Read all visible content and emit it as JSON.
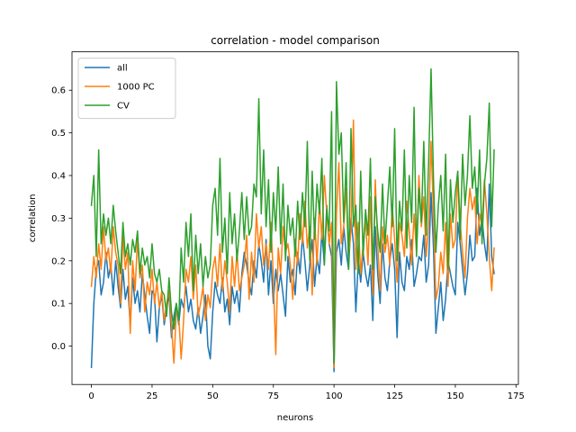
{
  "chart_data": {
    "type": "line",
    "title": "correlation - model comparison",
    "xlabel": "neurons",
    "ylabel": "correlation",
    "xlim": [
      -8,
      176
    ],
    "ylim": [
      -0.09,
      0.69
    ],
    "xticks": [
      0,
      25,
      50,
      75,
      100,
      125,
      150,
      175
    ],
    "yticks": [
      0.0,
      0.1,
      0.2,
      0.3,
      0.4,
      0.5,
      0.6
    ],
    "ytick_labels": [
      "0.0",
      "0.1",
      "0.2",
      "0.3",
      "0.4",
      "0.5",
      "0.6"
    ],
    "grid": false,
    "legend_position": "upper left",
    "series": [
      {
        "name": "all",
        "color": "#1f77b4",
        "values": [
          -0.05,
          0.1,
          0.18,
          0.2,
          0.12,
          0.15,
          0.22,
          0.16,
          0.19,
          0.12,
          0.2,
          0.14,
          0.09,
          0.18,
          0.11,
          0.14,
          0.05,
          0.16,
          0.1,
          0.13,
          0.08,
          0.17,
          0.12,
          0.07,
          0.03,
          0.13,
          0.12,
          0.01,
          0.09,
          0.12,
          0.05,
          0.09,
          0.12,
          0.02,
          0.07,
          0.1,
          0.05,
          0.11,
          0.09,
          0.14,
          0.08,
          0.11,
          0.06,
          0.04,
          0.09,
          0.03,
          0.07,
          0.12,
          0.0,
          -0.03,
          0.08,
          0.15,
          0.12,
          0.1,
          0.16,
          0.08,
          0.11,
          0.05,
          0.14,
          0.1,
          0.13,
          0.08,
          0.17,
          0.22,
          0.19,
          0.15,
          0.12,
          0.2,
          0.16,
          0.24,
          0.2,
          0.15,
          0.25,
          0.12,
          0.2,
          0.1,
          0.18,
          0.13,
          0.17,
          0.12,
          0.07,
          0.21,
          0.15,
          0.18,
          0.12,
          0.22,
          0.17,
          0.26,
          0.2,
          0.13,
          0.19,
          0.25,
          0.14,
          0.21,
          0.17,
          0.27,
          0.19,
          0.33,
          0.24,
          0.21,
          -0.06,
          0.22,
          0.25,
          0.19,
          0.28,
          0.22,
          0.18,
          0.3,
          0.24,
          0.08,
          0.2,
          0.15,
          0.22,
          0.17,
          0.14,
          0.19,
          0.06,
          0.28,
          0.17,
          0.1,
          0.24,
          0.16,
          0.13,
          0.2,
          0.24,
          0.18,
          0.02,
          0.22,
          0.15,
          0.13,
          0.21,
          0.18,
          0.25,
          0.14,
          0.17,
          0.21,
          0.2,
          0.26,
          0.15,
          0.19,
          0.36,
          0.23,
          0.03,
          0.09,
          0.15,
          0.06,
          0.11,
          0.2,
          0.17,
          0.14,
          0.12,
          0.29,
          0.24,
          0.18,
          0.12,
          0.17,
          0.26,
          0.2,
          0.21,
          0.37,
          0.26,
          0.3,
          0.24,
          0.2,
          0.38,
          0.21,
          0.17
        ]
      },
      {
        "name": "1000 PC",
        "color": "#ff7f0e",
        "values": [
          0.14,
          0.21,
          0.16,
          0.24,
          0.18,
          0.28,
          0.2,
          0.23,
          0.17,
          0.28,
          0.22,
          0.19,
          0.1,
          0.26,
          0.18,
          0.22,
          0.03,
          0.2,
          0.13,
          0.25,
          0.16,
          0.19,
          0.08,
          0.15,
          0.12,
          0.18,
          0.1,
          0.15,
          0.09,
          0.13,
          0.06,
          0.1,
          0.13,
          0.05,
          -0.04,
          0.08,
          0.07,
          -0.03,
          0.06,
          0.18,
          0.15,
          0.21,
          0.11,
          0.19,
          0.07,
          0.1,
          0.14,
          0.06,
          0.12,
          0.09,
          0.18,
          0.21,
          0.14,
          0.24,
          0.13,
          0.2,
          0.15,
          0.08,
          0.21,
          0.14,
          0.22,
          0.13,
          0.16,
          0.19,
          0.26,
          0.11,
          0.22,
          0.15,
          0.31,
          0.23,
          0.28,
          0.19,
          0.24,
          0.18,
          0.29,
          0.16,
          -0.02,
          0.23,
          0.17,
          0.28,
          0.22,
          0.24,
          0.19,
          0.11,
          0.25,
          0.19,
          0.31,
          0.24,
          0.34,
          0.23,
          0.28,
          0.12,
          0.3,
          0.19,
          0.34,
          0.25,
          0.4,
          0.31,
          0.24,
          0.29,
          -0.05,
          0.31,
          0.43,
          0.24,
          0.28,
          0.37,
          0.21,
          0.27,
          0.53,
          0.18,
          0.29,
          0.17,
          0.24,
          0.3,
          0.19,
          0.35,
          0.12,
          0.39,
          0.24,
          0.13,
          0.28,
          0.22,
          0.26,
          0.19,
          0.33,
          0.25,
          0.15,
          0.29,
          0.26,
          0.21,
          0.34,
          0.27,
          0.19,
          0.31,
          0.22,
          0.4,
          0.28,
          0.35,
          0.21,
          0.29,
          0.48,
          0.31,
          0.11,
          0.14,
          0.22,
          0.17,
          0.29,
          0.14,
          0.31,
          0.23,
          0.25,
          0.41,
          0.29,
          0.22,
          0.16,
          0.3,
          0.37,
          0.32,
          0.35,
          0.24,
          0.31,
          0.28,
          0.39,
          0.31,
          0.21,
          0.13,
          0.23
        ]
      },
      {
        "name": "CV",
        "color": "#2ca02c",
        "values": [
          0.33,
          0.4,
          0.21,
          0.46,
          0.24,
          0.31,
          0.26,
          0.3,
          0.24,
          0.33,
          0.27,
          0.22,
          0.17,
          0.29,
          0.21,
          0.24,
          0.19,
          0.25,
          0.22,
          0.27,
          0.17,
          0.23,
          0.19,
          0.21,
          0.16,
          0.24,
          0.17,
          0.15,
          0.18,
          0.13,
          0.12,
          0.07,
          0.16,
          0.08,
          0.04,
          0.1,
          0.06,
          0.23,
          0.15,
          0.29,
          0.21,
          0.31,
          0.13,
          0.26,
          0.17,
          0.24,
          0.14,
          0.21,
          0.16,
          0.19,
          0.33,
          0.37,
          0.26,
          0.44,
          0.22,
          0.3,
          0.17,
          0.36,
          0.24,
          0.31,
          0.2,
          0.27,
          0.36,
          0.25,
          0.35,
          0.26,
          0.28,
          0.38,
          0.35,
          0.58,
          0.31,
          0.46,
          0.28,
          0.39,
          0.22,
          0.36,
          0.27,
          0.42,
          0.24,
          0.38,
          0.2,
          0.33,
          0.26,
          0.3,
          0.21,
          0.34,
          0.25,
          0.36,
          0.28,
          0.48,
          0.2,
          0.41,
          0.25,
          0.38,
          0.31,
          0.44,
          0.19,
          0.32,
          0.27,
          0.55,
          -0.04,
          0.62,
          0.45,
          0.5,
          0.29,
          0.43,
          0.18,
          0.51,
          0.28,
          0.33,
          0.17,
          0.41,
          0.21,
          0.32,
          0.26,
          0.44,
          0.18,
          0.35,
          0.27,
          0.22,
          0.38,
          0.24,
          0.33,
          0.42,
          0.28,
          0.51,
          0.2,
          0.34,
          0.27,
          0.46,
          0.23,
          0.4,
          0.29,
          0.56,
          0.21,
          0.37,
          0.29,
          0.48,
          0.26,
          0.43,
          0.65,
          0.39,
          0.22,
          0.33,
          0.4,
          0.27,
          0.45,
          0.18,
          0.39,
          0.29,
          0.36,
          0.41,
          0.25,
          0.45,
          0.33,
          0.4,
          0.54,
          0.37,
          0.42,
          0.31,
          0.46,
          0.24,
          0.38,
          0.44,
          0.57,
          0.28,
          0.46
        ]
      }
    ]
  }
}
